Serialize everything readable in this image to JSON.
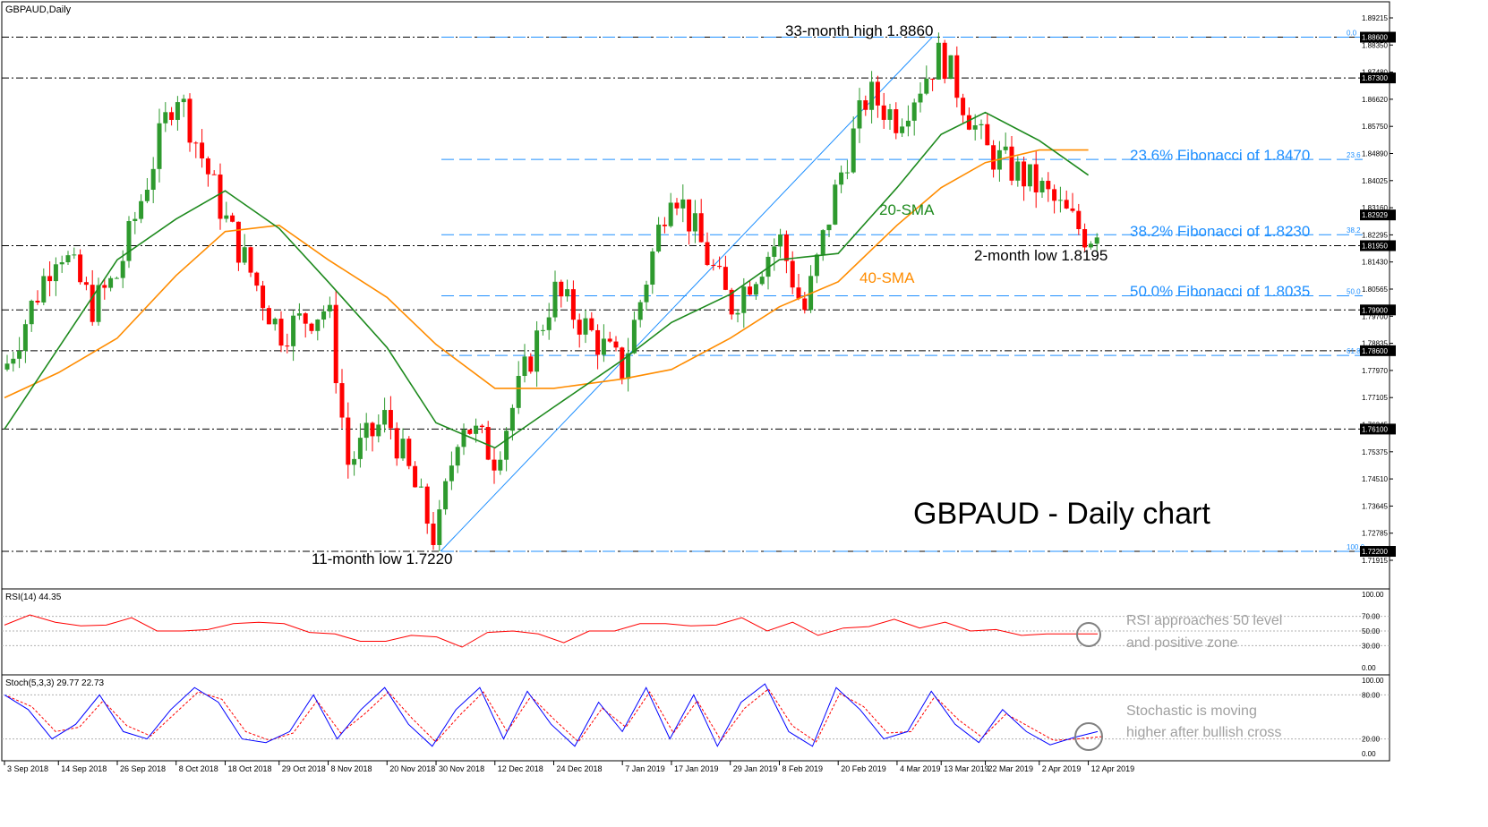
{
  "main": {
    "symbol_label": "GBPAUD,Daily",
    "title": "GBPAUD - Daily chart",
    "y_ticks": [
      "1.89215",
      "1.88350",
      "1.87480",
      "1.86620",
      "1.85750",
      "1.84890",
      "1.84025",
      "1.83160",
      "1.82295",
      "1.81430",
      "1.80565",
      "1.79700",
      "1.78835",
      "1.77970",
      "1.77105",
      "1.76245",
      "1.75375",
      "1.74510",
      "1.73645",
      "1.72785",
      "1.71915"
    ],
    "price_boxes": [
      "1.88600",
      "1.87300",
      "1.82929",
      "1.81950",
      "1.79900",
      "1.78600",
      "1.76100",
      "1.72200"
    ],
    "annotations": {
      "high": "33-month high 1.8860",
      "low": "11-month low 1.7220",
      "two_month_low": "2-month low 1.8195",
      "sma20": "20-SMA",
      "sma40": "40-SMA",
      "fib236": "23.6% Fibonacci of 1.8470",
      "fib382": "38.2% Fibonacci of 1.8230",
      "fib500": "50.0% Fibonacci of 1.8035"
    },
    "fib_tags": [
      "0.0",
      "23.6",
      "38.2",
      "50.0",
      "61.8",
      "100.0"
    ]
  },
  "rsi_panel": {
    "label": "RSI(14) 44.35",
    "ticks": [
      "100.00",
      "70.00",
      "50.00",
      "30.00",
      "0.00"
    ],
    "note_line1": "RSI approaches 50 level",
    "note_line2": "and positive zone"
  },
  "stoch_panel": {
    "label": "Stoch(5,3,3) 29.77 22.73",
    "ticks": [
      "100.00",
      "80.00",
      "20.00",
      "0.00"
    ],
    "note_line1": "Stochastic is moving",
    "note_line2": "higher after bullish cross"
  },
  "x_ticks": [
    "3 Sep 2018",
    "14 Sep 2018",
    "26 Sep 2018",
    "8 Oct 2018",
    "18 Oct 2018",
    "29 Oct 2018",
    "8 Nov 2018",
    "20 Nov 2018",
    "30 Nov 2018",
    "12 Dec 2018",
    "24 Dec 2018",
    "7 Jan 2019",
    "17 Jan 2019",
    "29 Jan 2019",
    "8 Feb 2019",
    "20 Feb 2019",
    "4 Mar 2019",
    "13 Mar 2019",
    "22 Mar 2019",
    "2 Apr 2019",
    "12 Apr 2019"
  ],
  "colors": {
    "bull": "#2e9a2e",
    "bear": "#ff0000",
    "sma20": "#1e8a1e",
    "sma40": "#ff8c00",
    "fib": "#1e8fff",
    "rsi": "#ff0000",
    "stoch_main": "#0000ff",
    "stoch_signal": "#ff0000",
    "note": "#a0a0a0"
  },
  "chart_data": {
    "type": "candlestick",
    "title": "GBPAUD - Daily chart",
    "x_range": [
      "3 Sep 2018",
      "15 Apr 2019"
    ],
    "y_range": [
      1.7185,
      1.8935
    ],
    "horizontal_levels": [
      1.886,
      1.873,
      1.8195,
      1.799,
      1.786,
      1.761,
      1.722
    ],
    "fibonacci": {
      "low": 1.722,
      "high": 1.886,
      "levels": [
        {
          "ratio": "0.0",
          "value": 1.886
        },
        {
          "ratio": "23.6",
          "value": 1.847
        },
        {
          "ratio": "38.2",
          "value": 1.823
        },
        {
          "ratio": "50.0",
          "value": 1.8035
        },
        {
          "ratio": "61.8",
          "value": 1.7845
        },
        {
          "ratio": "100.0",
          "value": 1.722
        }
      ]
    },
    "close_path": [
      {
        "x": "3 Sep 2018",
        "y": 1.78
      },
      {
        "x": "14 Sep 2018",
        "y": 1.82
      },
      {
        "x": "21 Sep 2018",
        "y": 1.8
      },
      {
        "x": "26 Sep 2018",
        "y": 1.81
      },
      {
        "x": "8 Oct 2018",
        "y": 1.87
      },
      {
        "x": "18 Oct 2018",
        "y": 1.828
      },
      {
        "x": "29 Oct 2018",
        "y": 1.792
      },
      {
        "x": "8 Nov 2018",
        "y": 1.8
      },
      {
        "x": "12 Nov 2018",
        "y": 1.75
      },
      {
        "x": "20 Nov 2018",
        "y": 1.765
      },
      {
        "x": "30 Nov 2018",
        "y": 1.725
      },
      {
        "x": "5 Dec 2018",
        "y": 1.765
      },
      {
        "x": "12 Dec 2018",
        "y": 1.752
      },
      {
        "x": "24 Dec 2018",
        "y": 1.805
      },
      {
        "x": "7 Jan 2019",
        "y": 1.78
      },
      {
        "x": "17 Jan 2019",
        "y": 1.84
      },
      {
        "x": "29 Jan 2019",
        "y": 1.8
      },
      {
        "x": "8 Feb 2019",
        "y": 1.822
      },
      {
        "x": "13 Feb 2019",
        "y": 1.798
      },
      {
        "x": "20 Feb 2019",
        "y": 1.84
      },
      {
        "x": "26 Feb 2019",
        "y": 1.868
      },
      {
        "x": "4 Mar 2019",
        "y": 1.86
      },
      {
        "x": "13 Mar 2019",
        "y": 1.881
      },
      {
        "x": "22 Mar 2019",
        "y": 1.85
      },
      {
        "x": "2 Apr 2019",
        "y": 1.838
      },
      {
        "x": "12 Apr 2019",
        "y": 1.822
      },
      {
        "x": "15 Apr 2019",
        "y": 1.829
      }
    ],
    "sma20_path": [
      {
        "x": "3 Sep 2018",
        "y": 1.761
      },
      {
        "x": "26 Sep 2018",
        "y": 1.815
      },
      {
        "x": "8 Oct 2018",
        "y": 1.828
      },
      {
        "x": "18 Oct 2018",
        "y": 1.837
      },
      {
        "x": "29 Oct 2018",
        "y": 1.825
      },
      {
        "x": "8 Nov 2018",
        "y": 1.808
      },
      {
        "x": "20 Nov 2018",
        "y": 1.787
      },
      {
        "x": "30 Nov 2018",
        "y": 1.763
      },
      {
        "x": "12 Dec 2018",
        "y": 1.755
      },
      {
        "x": "24 Dec 2018",
        "y": 1.768
      },
      {
        "x": "7 Jan 2019",
        "y": 1.783
      },
      {
        "x": "17 Jan 2019",
        "y": 1.795
      },
      {
        "x": "29 Jan 2019",
        "y": 1.804
      },
      {
        "x": "8 Feb 2019",
        "y": 1.815
      },
      {
        "x": "20 Feb 2019",
        "y": 1.817
      },
      {
        "x": "4 Mar 2019",
        "y": 1.838
      },
      {
        "x": "13 Mar 2019",
        "y": 1.855
      },
      {
        "x": "22 Mar 2019",
        "y": 1.862
      },
      {
        "x": "2 Apr 2019",
        "y": 1.853
      },
      {
        "x": "12 Apr 2019",
        "y": 1.842
      }
    ],
    "sma40_path": [
      {
        "x": "3 Sep 2018",
        "y": 1.771
      },
      {
        "x": "14 Sep 2018",
        "y": 1.779
      },
      {
        "x": "26 Sep 2018",
        "y": 1.79
      },
      {
        "x": "8 Oct 2018",
        "y": 1.81
      },
      {
        "x": "18 Oct 2018",
        "y": 1.824
      },
      {
        "x": "29 Oct 2018",
        "y": 1.826
      },
      {
        "x": "8 Nov 2018",
        "y": 1.815
      },
      {
        "x": "20 Nov 2018",
        "y": 1.803
      },
      {
        "x": "30 Nov 2018",
        "y": 1.788
      },
      {
        "x": "12 Dec 2018",
        "y": 1.774
      },
      {
        "x": "24 Dec 2018",
        "y": 1.774
      },
      {
        "x": "7 Jan 2019",
        "y": 1.777
      },
      {
        "x": "17 Jan 2019",
        "y": 1.78
      },
      {
        "x": "29 Jan 2019",
        "y": 1.79
      },
      {
        "x": "8 Feb 2019",
        "y": 1.8
      },
      {
        "x": "20 Feb 2019",
        "y": 1.808
      },
      {
        "x": "4 Mar 2019",
        "y": 1.826
      },
      {
        "x": "13 Mar 2019",
        "y": 1.838
      },
      {
        "x": "22 Mar 2019",
        "y": 1.846
      },
      {
        "x": "2 Apr 2019",
        "y": 1.85
      },
      {
        "x": "12 Apr 2019",
        "y": 1.85
      }
    ],
    "rsi": {
      "name": "RSI(14)",
      "last": 44.35,
      "ylim": [
        0,
        100
      ],
      "levels": [
        70,
        50,
        30
      ],
      "values": [
        60,
        70,
        64,
        55,
        60,
        66,
        52,
        48,
        54,
        58,
        64,
        58,
        50,
        44,
        38,
        34,
        46,
        40,
        30,
        46,
        52,
        44,
        36,
        48,
        52,
        58,
        62,
        55,
        60,
        66,
        52,
        60,
        46,
        52,
        58,
        64,
        56,
        60,
        52,
        50,
        46,
        44,
        48,
        44
      ]
    },
    "stochastic": {
      "name": "Stoch(5,3,3)",
      "main_last": 29.77,
      "signal_last": 22.73,
      "ylim": [
        0,
        100
      ],
      "levels": [
        80,
        20
      ],
      "main": [
        80,
        60,
        20,
        40,
        80,
        30,
        20,
        60,
        90,
        70,
        20,
        15,
        30,
        80,
        20,
        60,
        90,
        40,
        10,
        60,
        90,
        20,
        85,
        40,
        10,
        70,
        30,
        90,
        20,
        80,
        10,
        70,
        95,
        30,
        10,
        90,
        60,
        20,
        30,
        85,
        40,
        15,
        60,
        30,
        12,
        22,
        30
      ],
      "signal": [
        78,
        64,
        30,
        36,
        72,
        38,
        24,
        54,
        84,
        74,
        30,
        18,
        28,
        72,
        28,
        54,
        84,
        48,
        16,
        52,
        84,
        30,
        78,
        46,
        16,
        62,
        36,
        84,
        28,
        72,
        18,
        62,
        88,
        38,
        16,
        82,
        64,
        28,
        30,
        78,
        46,
        22,
        54,
        36,
        18,
        20,
        23
      ]
    }
  }
}
